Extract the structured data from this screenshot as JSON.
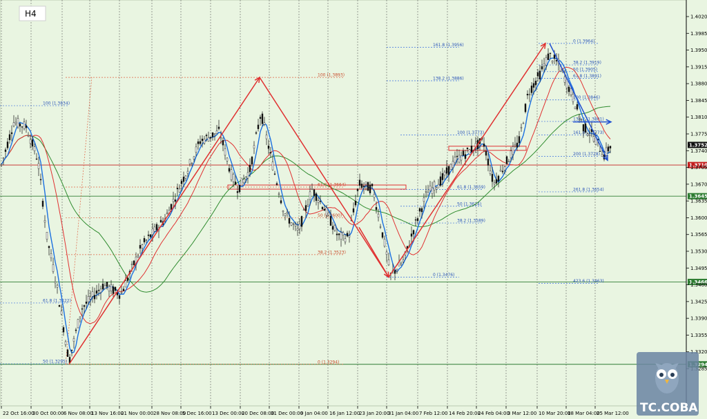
{
  "chart_data": {
    "type": "candlestick",
    "timeframe": "H4",
    "ylim": [
      1.3255,
      1.4035
    ],
    "price_ticks": [
      "1.4020",
      "1.3985",
      "1.3950",
      "1.3915",
      "1.3880",
      "1.3845",
      "1.3810",
      "1.3775",
      "1.3740",
      "1.3705",
      "1.3670",
      "1.3635",
      "1.3600",
      "1.3565",
      "1.3530",
      "1.3495",
      "1.3460",
      "1.3425",
      "1.3390",
      "1.3355",
      "1.3320",
      "1.3285"
    ],
    "time_ticks": [
      "22 Oct 16:00",
      "30 Oct 00:00",
      "6 Nov 08:00",
      "13 Nov 16:00",
      "21 Nov 00:00",
      "28 Nov 08:00",
      "5 Dec 16:00",
      "13 Dec 00:00",
      "20 Dec 08:00",
      "31 Dec 00:00",
      "9 Jan 04:00",
      "16 Jan 12:00",
      "23 Jan 20:00",
      "31 Jan 04:00",
      "7 Feb 12:00",
      "14 Feb 20:00",
      "24 Feb 04:00",
      "3 Mar 12:00",
      "10 Mar 20:00",
      "18 Mar 04:00",
      "25 Mar 12:00"
    ],
    "current_price": "1.3752",
    "price_levels": [
      {
        "price": 1.371,
        "label": "1.3710",
        "color": "#c41e1e"
      },
      {
        "price": 1.3645,
        "label": "1.3645",
        "color": "#2e7d32"
      },
      {
        "price": 1.3466,
        "label": "1.3466",
        "color": "#2e7d32"
      },
      {
        "price": 1.3294,
        "label": "1.3294",
        "color": "#2e7d32"
      }
    ],
    "fib_blue": [
      {
        "label": "100 (1.3834)",
        "price": 1.3834
      },
      {
        "label": "61.8 (1.3422)",
        "price": 1.3422
      },
      {
        "label": "50 (1.3295)",
        "price": 1.3295
      },
      {
        "label": "161.8 (1.3956)",
        "price": 1.3956
      },
      {
        "label": "138.2 (1.3886)",
        "price": 1.3886
      },
      {
        "label": "100 (1.3773)",
        "price": 1.3773
      },
      {
        "label": "61.8 (1.3659)",
        "price": 1.3659
      },
      {
        "label": "50 (1.3624)",
        "price": 1.3624
      },
      {
        "label": "38.2 (1.3589)",
        "price": 1.3589
      },
      {
        "label": "0 (1.3476)",
        "price": 1.3476
      },
      {
        "label": "0 (1.3964)",
        "price": 1.3964
      },
      {
        "label": "38.2 (1.3919)",
        "price": 1.3919
      },
      {
        "label": "50 (1.3905)",
        "price": 1.3905
      },
      {
        "label": "61.8 (1.3891)",
        "price": 1.3891
      },
      {
        "label": "100 (1.3846)",
        "price": 1.3846
      },
      {
        "label": "138.2 (1.3801)",
        "price": 1.3801
      },
      {
        "label": "161.8 (1.3773)",
        "price": 1.3773
      },
      {
        "label": "200 (1.3728)",
        "price": 1.3728
      },
      {
        "label": "261.8 (1.3654)",
        "price": 1.3654
      },
      {
        "label": "423.6 (1.3463)",
        "price": 1.3463
      }
    ],
    "fib_red": [
      {
        "label": "100 (1.3893)",
        "price": 1.3893
      },
      {
        "label": "61.8 (1.3664)",
        "price": 1.3664
      },
      {
        "label": "50 (1.3600)",
        "price": 1.36
      },
      {
        "label": "38.2 (1.3523)",
        "price": 1.3523
      },
      {
        "label": "0 (1.3294)",
        "price": 1.3294
      }
    ],
    "grid": "vertical-dotted",
    "colors": {
      "background": "#e9f5e1",
      "up_wave": "#e03030",
      "down_wave": "#1f4fd0",
      "ma_fast": "#1a6fe0",
      "ma_mid": "#e03030",
      "ma_slow": "#2e8b2e"
    }
  },
  "watermark": {
    "text": "TC.COBA"
  }
}
